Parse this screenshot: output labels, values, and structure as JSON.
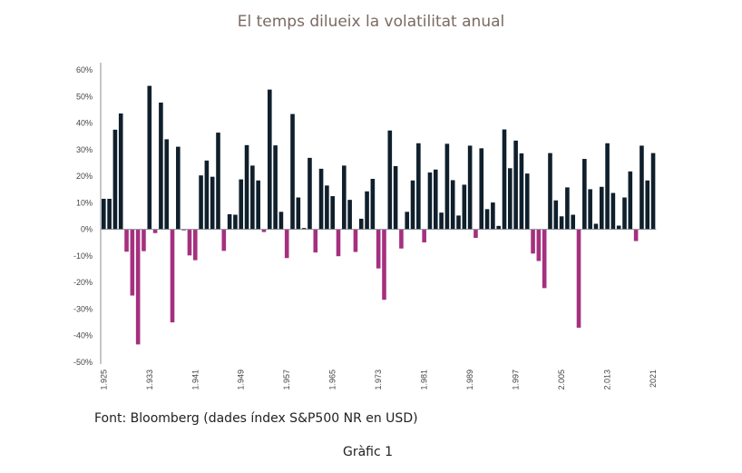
{
  "title": "El temps dilueix la volatilitat anual",
  "source": "Font: Bloomberg (dades índex S&P500 NR en USD)",
  "caption": "Gràfic 1",
  "colors": {
    "positive": "#0f1f2c",
    "negative": "#a5307f",
    "axis": "#8a9096",
    "title": "#7a6a62"
  },
  "chart_data": {
    "type": "bar",
    "title": "El temps dilueix la volatilitat anual",
    "xlabel": "",
    "ylabel": "",
    "ylim": [
      -50,
      60
    ],
    "yticks": [
      60,
      50,
      40,
      30,
      20,
      10,
      0,
      -10,
      -20,
      -30,
      -40,
      -50
    ],
    "ytick_labels": [
      "60%",
      "50%",
      "40%",
      "30%",
      "20%",
      "10%",
      "0%",
      "-10%",
      "-20%",
      "-30%",
      "-40%",
      "-50%"
    ],
    "xtick_labels": [
      {
        "year": 1925,
        "label": "1.925"
      },
      {
        "year": 1933,
        "label": "1.933"
      },
      {
        "year": 1941,
        "label": "1.941"
      },
      {
        "year": 1949,
        "label": "1.949"
      },
      {
        "year": 1957,
        "label": "1.957"
      },
      {
        "year": 1965,
        "label": "1.965"
      },
      {
        "year": 1973,
        "label": "1.973"
      },
      {
        "year": 1981,
        "label": "1.981"
      },
      {
        "year": 1989,
        "label": "1.989"
      },
      {
        "year": 1997,
        "label": "1.997"
      },
      {
        "year": 2005,
        "label": "2.005"
      },
      {
        "year": 2013,
        "label": "2.013"
      },
      {
        "year": 2021,
        "label": "2021"
      }
    ],
    "grid": false,
    "legend": "none",
    "x": [
      1925,
      1926,
      1927,
      1928,
      1929,
      1930,
      1931,
      1932,
      1933,
      1934,
      1935,
      1936,
      1937,
      1938,
      1939,
      1940,
      1941,
      1942,
      1943,
      1944,
      1945,
      1946,
      1947,
      1948,
      1949,
      1950,
      1951,
      1952,
      1953,
      1954,
      1955,
      1956,
      1957,
      1958,
      1959,
      1960,
      1961,
      1962,
      1963,
      1964,
      1965,
      1966,
      1967,
      1968,
      1969,
      1970,
      1971,
      1972,
      1973,
      1974,
      1975,
      1976,
      1977,
      1978,
      1979,
      1980,
      1981,
      1982,
      1983,
      1984,
      1985,
      1986,
      1987,
      1988,
      1989,
      1990,
      1991,
      1992,
      1993,
      1994,
      1995,
      1996,
      1997,
      1998,
      1999,
      2000,
      2001,
      2002,
      2003,
      2004,
      2005,
      2006,
      2007,
      2008,
      2009,
      2010,
      2011,
      2012,
      2013,
      2014,
      2015,
      2016,
      2017,
      2018,
      2019,
      2020,
      2021
    ],
    "values": [
      11.5,
      11.5,
      37.5,
      43.6,
      -8.4,
      -24.9,
      -43.3,
      -8.2,
      54.0,
      -1.4,
      47.7,
      33.9,
      -35.0,
      31.1,
      -0.4,
      -9.8,
      -11.6,
      20.3,
      25.9,
      19.8,
      36.4,
      -8.1,
      5.7,
      5.5,
      18.8,
      31.7,
      24.0,
      18.4,
      -1.0,
      52.6,
      31.6,
      6.6,
      -10.8,
      43.4,
      12.0,
      0.5,
      26.9,
      -8.7,
      22.8,
      16.5,
      12.5,
      -10.1,
      24.0,
      11.1,
      -8.5,
      4.0,
      14.3,
      19.0,
      -14.7,
      -26.5,
      37.2,
      23.8,
      -7.2,
      6.6,
      18.4,
      32.4,
      -4.9,
      21.4,
      22.5,
      6.3,
      32.2,
      18.5,
      5.2,
      16.8,
      31.5,
      -3.2,
      30.5,
      7.6,
      10.1,
      1.3,
      37.6,
      23.0,
      33.4,
      28.6,
      21.0,
      -9.1,
      -11.9,
      -22.1,
      28.7,
      10.9,
      4.9,
      15.8,
      5.5,
      -37.0,
      26.5,
      15.1,
      2.1,
      16.0,
      32.4,
      13.7,
      1.4,
      12.0,
      21.8,
      -4.4,
      31.5,
      18.4,
      28.7
    ]
  }
}
